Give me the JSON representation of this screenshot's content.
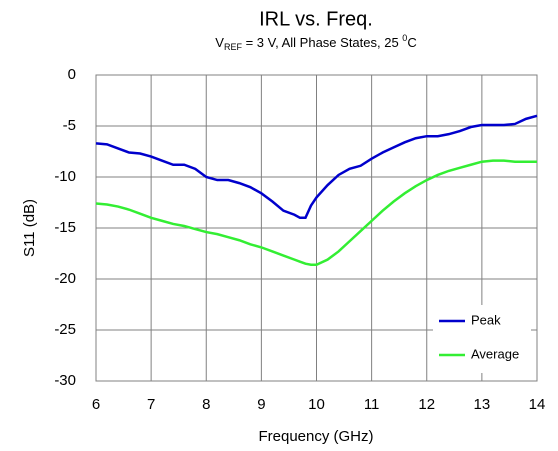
{
  "chart_data": {
    "type": "line",
    "title": "IRL vs. Freq.",
    "subtitle_parts": [
      "V",
      "REF",
      " = 3 V, All Phase States, 25 ",
      "0",
      "C"
    ],
    "xlabel": "Frequency (GHz)",
    "ylabel": "S11 (dB)",
    "x": [
      6.0,
      6.2,
      6.4,
      6.6,
      6.8,
      7.0,
      7.2,
      7.4,
      7.6,
      7.8,
      8.0,
      8.2,
      8.4,
      8.6,
      8.8,
      9.0,
      9.2,
      9.4,
      9.6,
      9.7,
      9.8,
      9.9,
      10.0,
      10.2,
      10.4,
      10.6,
      10.8,
      11.0,
      11.2,
      11.4,
      11.6,
      11.8,
      12.0,
      12.2,
      12.4,
      12.6,
      12.8,
      13.0,
      13.2,
      13.4,
      13.6,
      13.8,
      14.0
    ],
    "series": [
      {
        "name": "Peak",
        "color": "#0000cc",
        "values": [
          -6.7,
          -6.8,
          -7.2,
          -7.6,
          -7.7,
          -8.0,
          -8.4,
          -8.8,
          -8.8,
          -9.2,
          -10.0,
          -10.3,
          -10.3,
          -10.6,
          -11.0,
          -11.6,
          -12.4,
          -13.3,
          -13.7,
          -14.0,
          -14.0,
          -12.8,
          -12.0,
          -10.8,
          -9.8,
          -9.2,
          -8.9,
          -8.2,
          -7.6,
          -7.1,
          -6.6,
          -6.2,
          -6.0,
          -6.0,
          -5.8,
          -5.5,
          -5.1,
          -4.9,
          -4.9,
          -4.9,
          -4.8,
          -4.3,
          -4.0
        ]
      },
      {
        "name": "Average",
        "color": "#33ee33",
        "values": [
          -12.6,
          -12.7,
          -12.9,
          -13.2,
          -13.6,
          -14.0,
          -14.3,
          -14.6,
          -14.8,
          -15.1,
          -15.4,
          -15.6,
          -15.9,
          -16.2,
          -16.6,
          -16.9,
          -17.3,
          -17.7,
          -18.1,
          -18.3,
          -18.5,
          -18.6,
          -18.6,
          -18.1,
          -17.3,
          -16.3,
          -15.3,
          -14.3,
          -13.3,
          -12.4,
          -11.6,
          -10.9,
          -10.3,
          -9.8,
          -9.4,
          -9.1,
          -8.8,
          -8.5,
          -8.4,
          -8.4,
          -8.5,
          -8.5,
          -8.5
        ]
      }
    ],
    "xlim": [
      6,
      14
    ],
    "xticks": [
      6,
      7,
      8,
      9,
      10,
      11,
      12,
      13,
      14
    ],
    "ylim": [
      -30,
      0
    ],
    "yticks": [
      0,
      -5,
      -10,
      -15,
      -20,
      -25,
      -30
    ],
    "grid": true,
    "legend": "lower right"
  }
}
